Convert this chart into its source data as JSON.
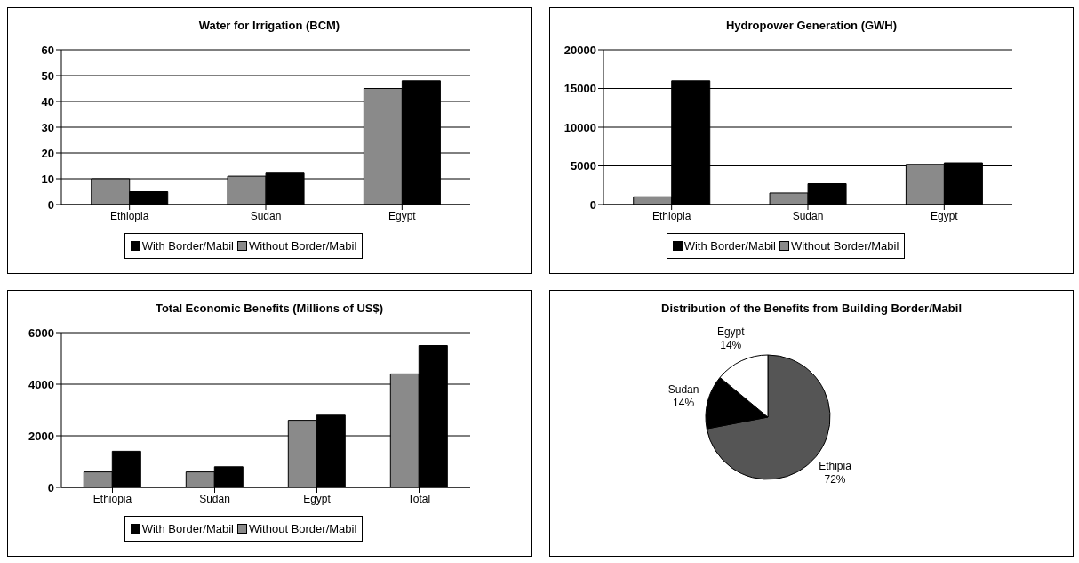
{
  "chart_data": [
    {
      "type": "bar",
      "title": "Water for Irrigation (BCM)",
      "categories": [
        "Ethiopia",
        "Sudan",
        "Egypt"
      ],
      "series": [
        {
          "name": "Without Border/Mabil",
          "color": "#8a8a8a",
          "values": [
            10,
            11,
            45
          ]
        },
        {
          "name": "With Border/Mabil",
          "color": "#000000",
          "values": [
            5,
            12.5,
            48
          ]
        }
      ],
      "ylim": [
        0,
        60
      ],
      "yticks": [
        0,
        10,
        20,
        30,
        40,
        50,
        60
      ],
      "grid": "y",
      "legend": "bottom"
    },
    {
      "type": "bar",
      "title": "Hydropower Generation (GWH)",
      "categories": [
        "Ethiopia",
        "Sudan",
        "Egypt"
      ],
      "series": [
        {
          "name": "Without Border/Mabil",
          "color": "#8a8a8a",
          "values": [
            1000,
            1500,
            5200
          ]
        },
        {
          "name": "With Border/Mabil",
          "color": "#000000",
          "values": [
            16000,
            2700,
            5400
          ]
        }
      ],
      "ylim": [
        0,
        20000
      ],
      "yticks": [
        0,
        5000,
        10000,
        15000,
        20000
      ],
      "grid": "y",
      "legend": "bottom"
    },
    {
      "type": "bar",
      "title": "Total Economic Benefits (Millions of US$)",
      "categories": [
        "Ethiopia",
        "Sudan",
        "Egypt",
        "Total"
      ],
      "series": [
        {
          "name": "Without Border/Mabil",
          "color": "#8a8a8a",
          "values": [
            600,
            600,
            2600,
            4400
          ]
        },
        {
          "name": "With Border/Mabil",
          "color": "#000000",
          "values": [
            1400,
            800,
            2800,
            5500
          ]
        }
      ],
      "ylim": [
        0,
        6000
      ],
      "yticks": [
        0,
        2000,
        4000,
        6000
      ],
      "grid": "y",
      "legend": "bottom"
    },
    {
      "type": "pie",
      "title": "Distribution of the Benefits from Building Border/Mabil",
      "categories": [
        "Ethipia",
        "Sudan",
        "Egypt"
      ],
      "values": [
        72,
        14,
        14
      ],
      "colors": [
        "#555555",
        "#000000",
        "#ffffff"
      ],
      "value_labels": [
        "72%",
        "14%",
        "14%"
      ]
    }
  ]
}
